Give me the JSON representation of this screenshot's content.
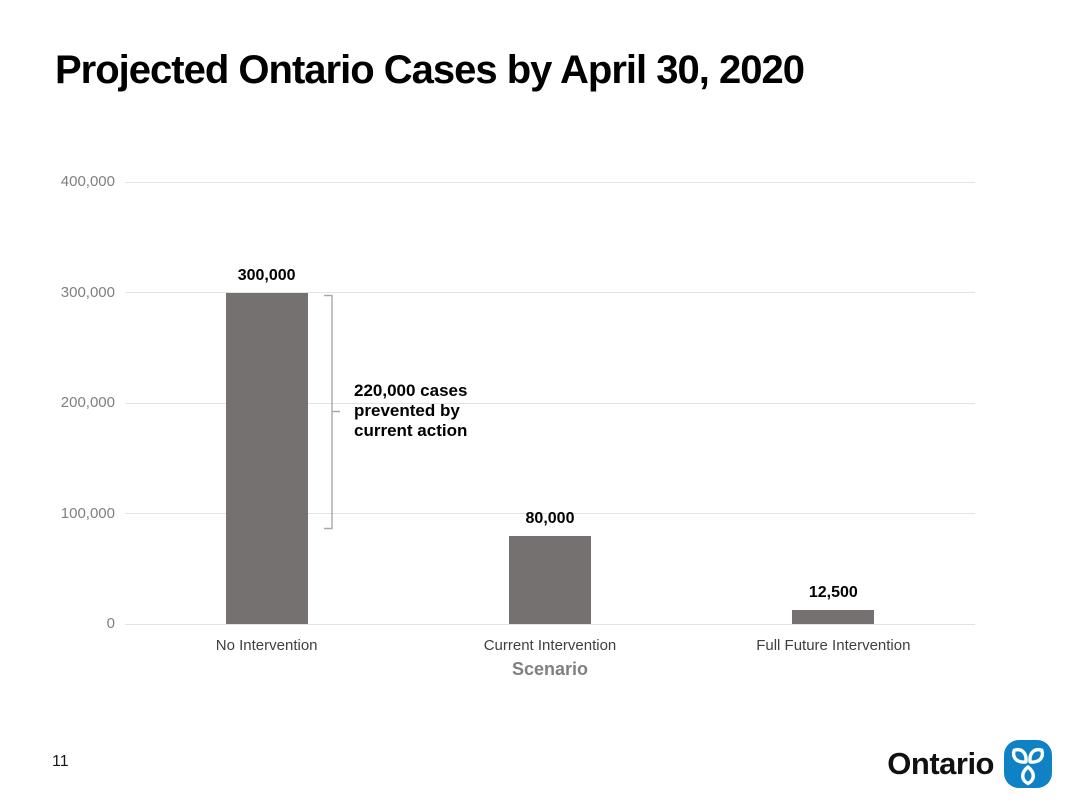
{
  "slide": {
    "title": "Projected Ontario Cases by April 30, 2020",
    "page_number": "11",
    "logo_text": "Ontario"
  },
  "chart_data": {
    "type": "bar",
    "title": "Projected Ontario Cases by April 30, 2020",
    "categories": [
      "No Intervention",
      "Current Intervention",
      "Full Future Intervention"
    ],
    "values": [
      300000,
      80000,
      12500
    ],
    "value_labels": [
      "300,000",
      "80,000",
      "12,500"
    ],
    "xlabel": "Scenario",
    "ylabel": "",
    "ylim": [
      0,
      400000
    ],
    "yticks": [
      0,
      100000,
      200000,
      300000,
      400000
    ],
    "ytick_labels": [
      "0",
      "100,000",
      "200,000",
      "300,000",
      "400,000"
    ],
    "grid": "horizontal gridlines only, no axis lines",
    "legend": "none",
    "bar_color": "#767171",
    "annotation": {
      "lines": [
        "220,000 cases",
        "prevented by",
        "current action"
      ],
      "text": "220,000 cases prevented by current action",
      "bracket_from_value": 300000,
      "bracket_to_value": 80000
    }
  },
  "colors": {
    "background": "#ffffff",
    "bar": "#767171",
    "gridline": "#e3e3e3",
    "ytick_label": "#7f7f7f",
    "category_label": "#3f3f3f",
    "axis_title": "#808080",
    "bracket": "#a9a9a9",
    "logo_blue": "#0f82c6"
  }
}
